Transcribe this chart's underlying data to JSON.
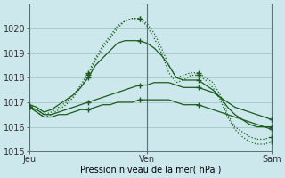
{
  "background_color": "#cce8ec",
  "grid_color": "#aacccc",
  "line_color_dark": "#1a5c1a",
  "line_color_med": "#1a6b1a",
  "title": "Pression niveau de la mer( hPa )",
  "ylim": [
    1015,
    1021
  ],
  "yticks": [
    1015,
    1016,
    1017,
    1018,
    1019,
    1020
  ],
  "xtick_labels": [
    "Jeu",
    "Ven",
    "Sam"
  ],
  "xtick_positions": [
    0,
    16,
    33
  ],
  "n_points": 34,
  "series": [
    [
      1016.8,
      1016.7,
      1016.5,
      1016.6,
      1016.8,
      1017.0,
      1017.3,
      1017.7,
      1018.2,
      1018.8,
      1019.3,
      1019.7,
      1020.1,
      1020.3,
      1020.4,
      1020.4,
      1020.2,
      1019.8,
      1019.2,
      1018.5,
      1018.0,
      1018.1,
      1018.2,
      1018.2,
      1018.0,
      1017.8,
      1017.3,
      1016.5,
      1016.0,
      1015.8,
      1015.6,
      1015.5,
      1015.5,
      1015.6
    ],
    [
      1016.8,
      1016.6,
      1016.4,
      1016.5,
      1016.7,
      1016.9,
      1017.2,
      1017.6,
      1018.1,
      1018.7,
      1019.2,
      1019.6,
      1020.0,
      1020.3,
      1020.4,
      1020.4,
      1020.1,
      1019.6,
      1019.0,
      1018.2,
      1017.8,
      1017.9,
      1018.1,
      1018.1,
      1017.9,
      1017.6,
      1017.1,
      1016.4,
      1015.9,
      1015.6,
      1015.4,
      1015.3,
      1015.3,
      1015.4
    ],
    [
      1016.9,
      1016.8,
      1016.6,
      1016.7,
      1016.9,
      1017.1,
      1017.3,
      1017.6,
      1018.0,
      1018.5,
      1018.8,
      1019.1,
      1019.4,
      1019.5,
      1019.5,
      1019.5,
      1019.4,
      1019.2,
      1018.9,
      1018.5,
      1018.0,
      1017.9,
      1017.9,
      1017.9,
      1017.7,
      1017.5,
      1017.2,
      1016.8,
      1016.5,
      1016.3,
      1016.1,
      1016.0,
      1016.0,
      1016.0
    ],
    [
      1016.8,
      1016.7,
      1016.5,
      1016.5,
      1016.6,
      1016.7,
      1016.8,
      1016.9,
      1017.0,
      1017.1,
      1017.2,
      1017.3,
      1017.4,
      1017.5,
      1017.6,
      1017.7,
      1017.7,
      1017.8,
      1017.8,
      1017.8,
      1017.7,
      1017.6,
      1017.6,
      1017.6,
      1017.5,
      1017.4,
      1017.2,
      1017.0,
      1016.8,
      1016.7,
      1016.6,
      1016.5,
      1016.4,
      1016.3
    ],
    [
      1016.8,
      1016.6,
      1016.4,
      1016.4,
      1016.5,
      1016.5,
      1016.6,
      1016.7,
      1016.7,
      1016.8,
      1016.9,
      1016.9,
      1017.0,
      1017.0,
      1017.0,
      1017.1,
      1017.1,
      1017.1,
      1017.1,
      1017.1,
      1017.0,
      1016.9,
      1016.9,
      1016.9,
      1016.8,
      1016.7,
      1016.6,
      1016.5,
      1016.4,
      1016.3,
      1016.2,
      1016.1,
      1016.0,
      1015.9
    ]
  ],
  "marker_every": [
    [
      0,
      8,
      15,
      23,
      33
    ],
    [
      0,
      8,
      15,
      23,
      33
    ],
    [
      0,
      8,
      15,
      23,
      33
    ],
    [
      0,
      8,
      15,
      23,
      33
    ],
    [
      0,
      8,
      15,
      23,
      33
    ]
  ],
  "line_styles": [
    "dotted",
    "dotted",
    "solid",
    "solid",
    "solid"
  ]
}
